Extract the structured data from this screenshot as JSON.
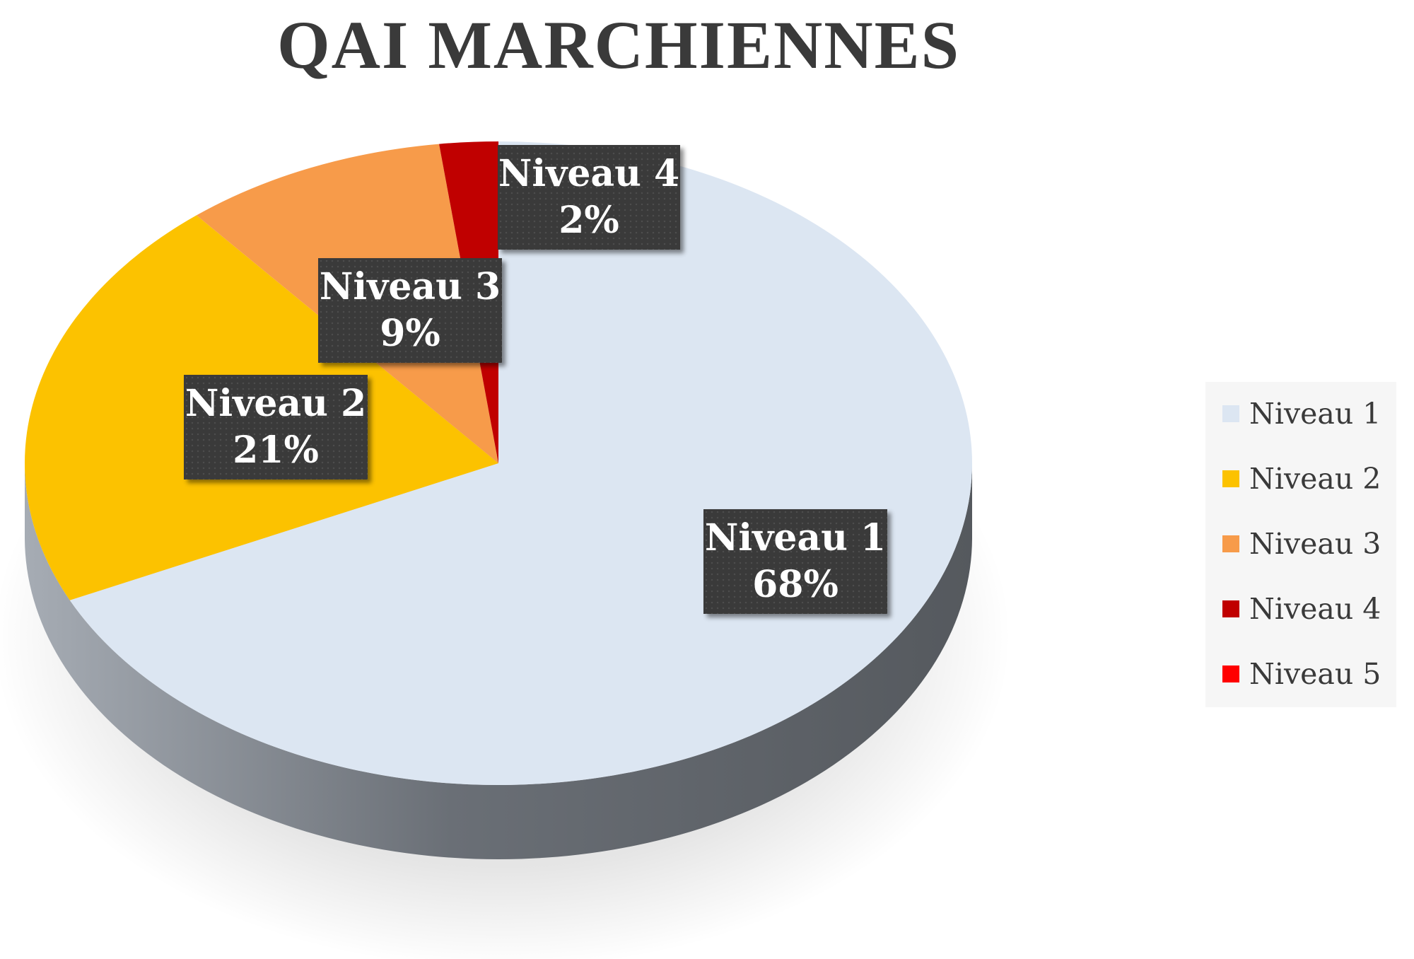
{
  "chart_data": {
    "type": "pie",
    "title": "QAI  MARCHIENNES",
    "legend_position": "right",
    "slices": [
      {
        "name": "Niveau 1",
        "value": 68,
        "label": "68%",
        "color": "#dce6f2"
      },
      {
        "name": "Niveau 2",
        "value": 21,
        "label": "21%",
        "color": "#fcc200"
      },
      {
        "name": "Niveau 3",
        "value": 9,
        "label": "9%",
        "color": "#f79b4a"
      },
      {
        "name": "Niveau 4",
        "value": 2,
        "label": "2%",
        "color": "#c00000"
      },
      {
        "name": "Niveau 5",
        "value": 0,
        "label": "",
        "color": "#ff0000"
      }
    ]
  }
}
